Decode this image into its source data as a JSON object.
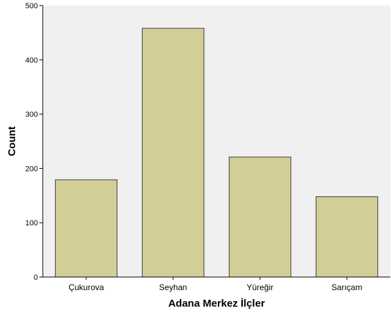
{
  "chart_data": {
    "type": "bar",
    "title": "",
    "xlabel": "Adana Merkez İlçler",
    "ylabel": "Count",
    "categories": [
      "Çukurova",
      "Seyhan",
      "Yüreğir",
      "Sarıçam"
    ],
    "values": [
      179,
      458,
      221,
      148
    ],
    "ylim": [
      0,
      500
    ],
    "yticks": [
      "0",
      "100",
      "200",
      "300",
      "400",
      "500"
    ],
    "grid": false,
    "legend": "none"
  },
  "colors": {
    "plot_background": "#f0f0f0",
    "bar_fill": "#d3ce97",
    "bar_stroke": "#3c3c3c",
    "axis": "#000000"
  }
}
